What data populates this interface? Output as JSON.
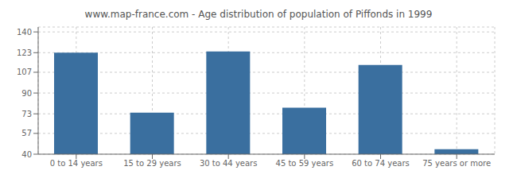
{
  "chart_data": {
    "type": "bar",
    "title": "www.map-france.com - Age distribution of population of Piffonds in 1999",
    "categories": [
      "0 to 14 years",
      "15 to 29 years",
      "30 to 44 years",
      "45 to 59 years",
      "60 to 74 years",
      "75 years or more"
    ],
    "values": [
      123,
      74,
      124,
      78,
      113,
      44
    ],
    "color": "#3a6f9f",
    "ylim": [
      40,
      144
    ],
    "yticks": [
      40,
      57,
      73,
      90,
      107,
      123,
      140
    ],
    "grid": true
  }
}
